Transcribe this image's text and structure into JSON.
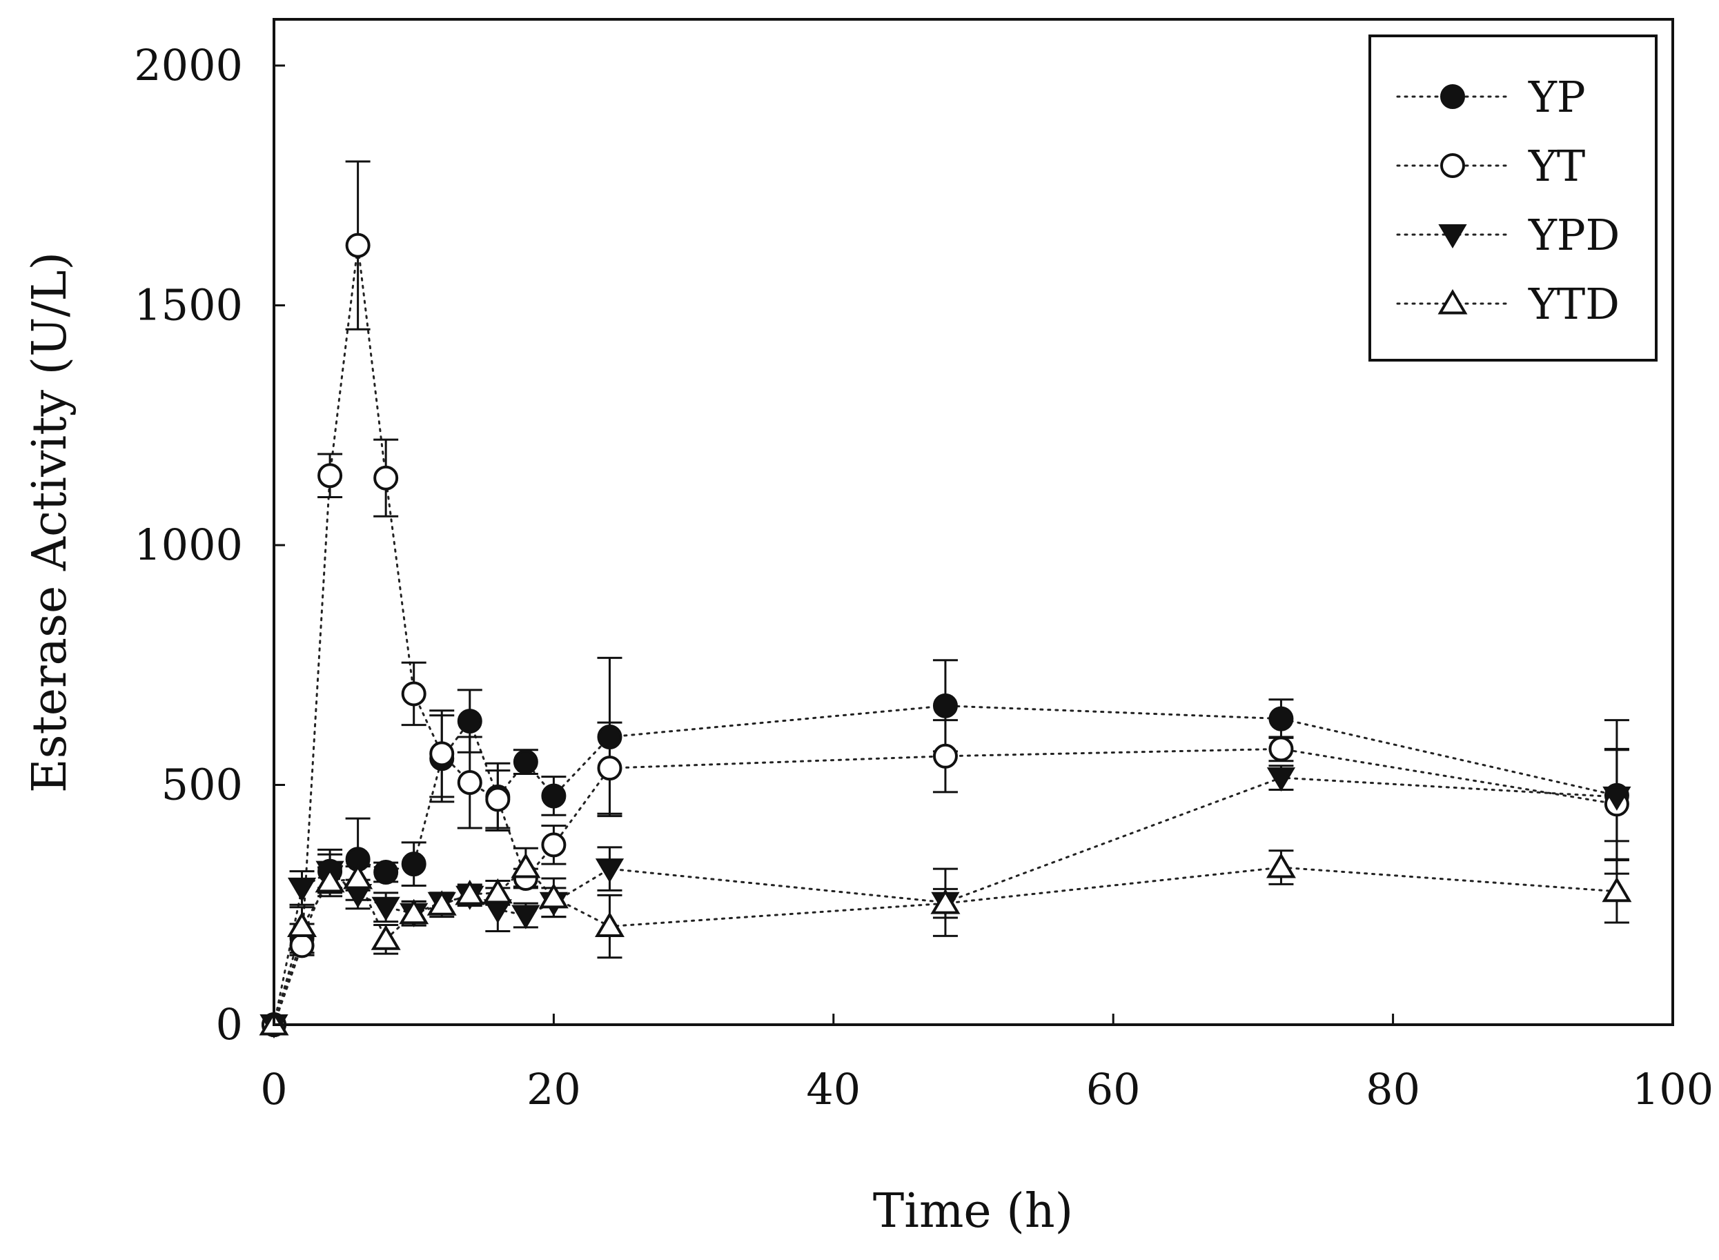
{
  "chart_data": {
    "type": "line",
    "xlabel": "Time (h)",
    "ylabel": "Esterase Activity (U/L)",
    "xlim": [
      0,
      100
    ],
    "ylim": [
      0,
      2000
    ],
    "xticks": [
      0,
      20,
      40,
      60,
      80,
      100
    ],
    "yticks": [
      0,
      500,
      1000,
      1500,
      2000
    ],
    "xtick_labels": [
      "0",
      "20",
      "40",
      "60",
      "80",
      "100"
    ],
    "ytick_labels": [
      "0",
      "500",
      "1000",
      "1500",
      "2000"
    ],
    "grid": false,
    "legend_position": "top-right",
    "series": [
      {
        "name": "YP",
        "marker": "filled-circle",
        "x": [
          0,
          2,
          4,
          6,
          8,
          10,
          12,
          14,
          16,
          18,
          20,
          24,
          48,
          72,
          96
        ],
        "y": [
          0,
          180,
          320,
          345,
          318,
          335,
          555,
          633,
          475,
          548,
          477,
          600,
          665,
          638,
          478
        ],
        "err": [
          10,
          30,
          45,
          85,
          20,
          45,
          90,
          65,
          70,
          25,
          40,
          165,
          95,
          40,
          95
        ]
      },
      {
        "name": "YT",
        "marker": "open-circle",
        "x": [
          0,
          2,
          4,
          6,
          8,
          10,
          12,
          14,
          16,
          18,
          20,
          24,
          48,
          72,
          96
        ],
        "y": [
          0,
          165,
          1145,
          1625,
          1140,
          690,
          565,
          505,
          470,
          305,
          375,
          535,
          560,
          575,
          460
        ],
        "err": [
          10,
          20,
          45,
          175,
          80,
          65,
          90,
          95,
          60,
          20,
          40,
          95,
          75,
          25,
          115
        ]
      },
      {
        "name": "YPD",
        "marker": "filled-triangle-down",
        "x": [
          0,
          2,
          4,
          6,
          8,
          10,
          12,
          14,
          16,
          18,
          20,
          24,
          48,
          72,
          96
        ],
        "y": [
          0,
          285,
          320,
          272,
          245,
          232,
          255,
          268,
          240,
          228,
          255,
          325,
          255,
          515,
          475
        ],
        "err": [
          10,
          35,
          35,
          30,
          30,
          25,
          20,
          20,
          45,
          25,
          30,
          45,
          70,
          25,
          160
        ]
      },
      {
        "name": "YTD",
        "marker": "open-triangle-up",
        "x": [
          0,
          2,
          4,
          6,
          8,
          10,
          12,
          14,
          16,
          18,
          20,
          24,
          48,
          72,
          96
        ],
        "y": [
          0,
          205,
          298,
          305,
          178,
          232,
          250,
          272,
          275,
          328,
          265,
          205,
          253,
          328,
          278
        ],
        "err": [
          10,
          40,
          30,
          25,
          30,
          25,
          25,
          20,
          25,
          40,
          40,
          65,
          30,
          35,
          65
        ]
      }
    ]
  }
}
